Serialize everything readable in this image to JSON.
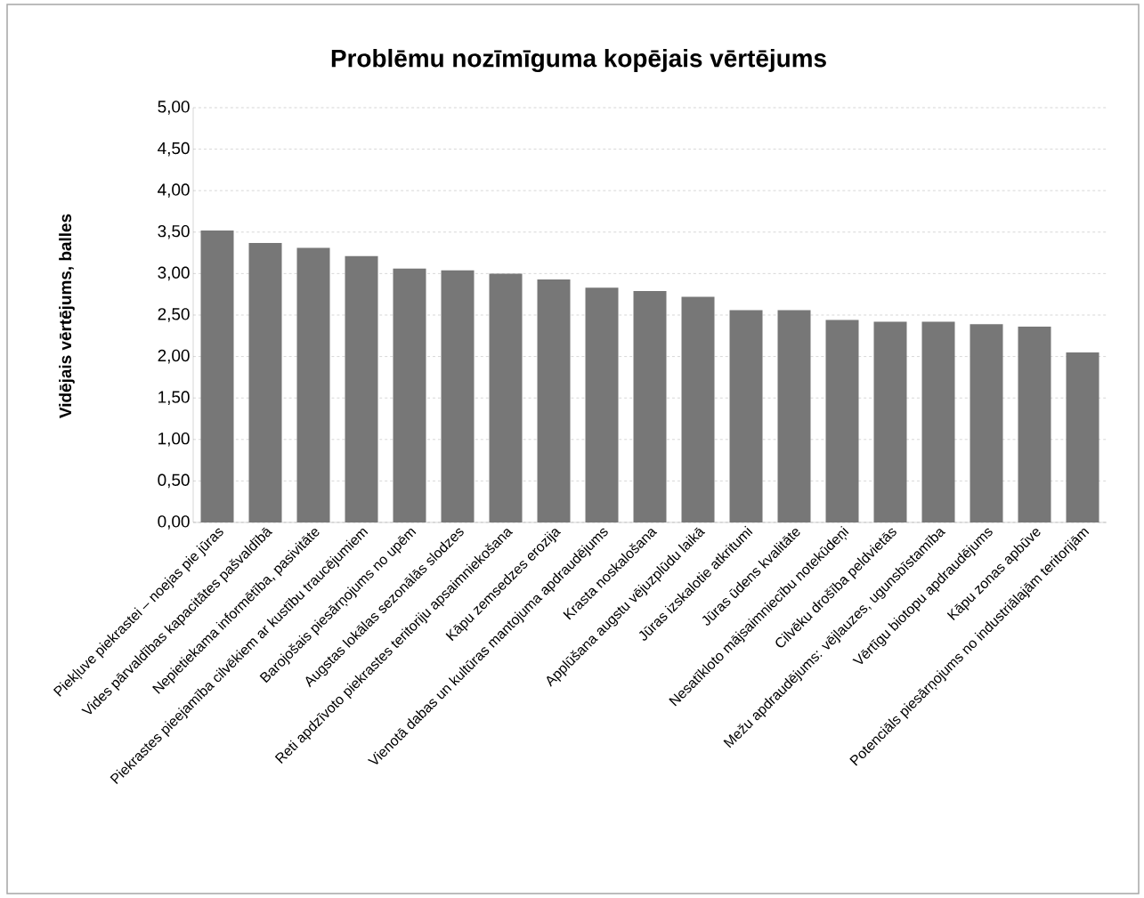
{
  "chart_data": {
    "type": "bar",
    "title": "Problēmu nozīmīguma kopējais vērtējums",
    "ylabel": "Vidējais vērtējums, balles",
    "categories": [
      "Piekļuve piekrastei – noejas pie jūras",
      "Vides pārvaldības kapacitātes pašvaldībā",
      "Nepietiekama informētība, pasivitāte",
      "Piekrastes pieejamība cilvēkiem ar kustību traucējumiem",
      "Barojošais piesārņojums no upēm",
      "Augstas lokālas sezonālās slodzes",
      "Reti apdzīvoto piekrastes teritoriju apsaimniekošana",
      "Kāpu zemsedzes erozija",
      "Vienotā dabas un kultūras mantojuma apdraudējums",
      "Krasta noskalošana",
      "Applūšana augstu vējuzplūdu laikā",
      "Jūras izskalotie atkritumi",
      "Jūras ūdens kvalitāte",
      "Nesatīkloto mājsaimniecību notekūdeņi",
      "Cilvēku drošība peldvietās",
      "Mežu apdraudējums: vējlauzes, ugunsbīstamība",
      "Vērtīgu biotopu apdraudējums",
      "Kāpu zonas apbūve",
      "Potenciāls piesārņojums no industriālajām teritorijām"
    ],
    "values": [
      3.52,
      3.37,
      3.31,
      3.21,
      3.06,
      3.04,
      3.0,
      2.93,
      2.83,
      2.79,
      2.72,
      2.56,
      2.56,
      2.44,
      2.42,
      2.42,
      2.39,
      2.36,
      2.05
    ],
    "color": "#777777",
    "ylim": [
      0,
      5
    ],
    "yticks": [
      {
        "value": 0,
        "label": "0,00"
      },
      {
        "value": 0.5,
        "label": "0,50"
      },
      {
        "value": 1,
        "label": "1,00"
      },
      {
        "value": 1.5,
        "label": "1,50"
      },
      {
        "value": 2,
        "label": "2,00"
      },
      {
        "value": 2.5,
        "label": "2,50"
      },
      {
        "value": 3,
        "label": "3,00"
      },
      {
        "value": 3.5,
        "label": "3,50"
      },
      {
        "value": 4,
        "label": "4,00"
      },
      {
        "value": 4.5,
        "label": "4,50"
      },
      {
        "value": 5,
        "label": "5,00"
      }
    ],
    "grid": "y"
  }
}
